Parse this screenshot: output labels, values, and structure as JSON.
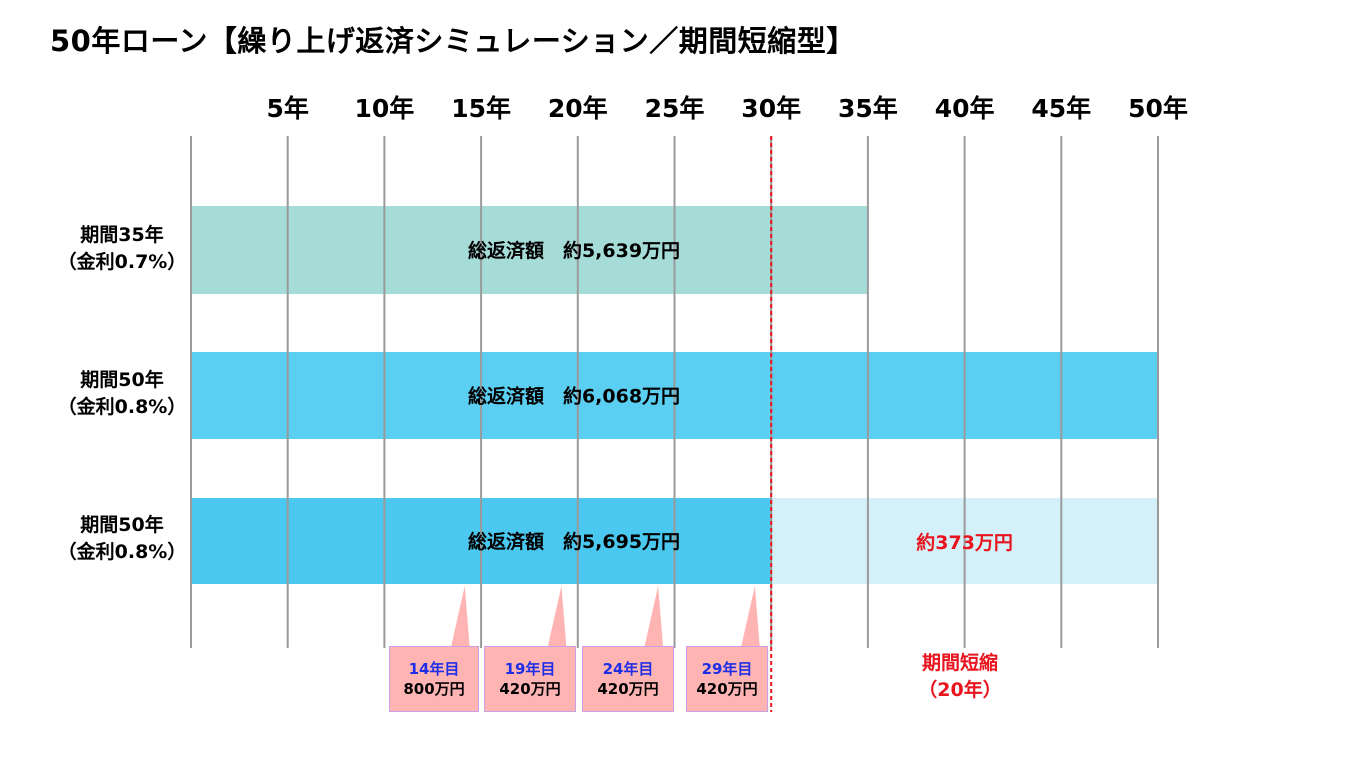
{
  "title": "50年ローン【繰り上げ返済シミュレーション／期間短縮型】",
  "colors": {
    "bar_35": "#a6dcd8",
    "bar_50": "#5bcff1",
    "bar_prepay": "#4bc8ef",
    "bar_saving": "#d4f1fa",
    "grid": "#9a9a9a",
    "marker": "#e8141e",
    "callout_bg": "#ffb4b4",
    "callout_year": "#1e2ee6"
  },
  "chart_data": {
    "type": "bar",
    "orientation": "horizontal",
    "title": "50年ローン【繰り上げ返済シミュレーション／期間短縮型】",
    "x_unit": "年",
    "xlim": [
      0,
      50
    ],
    "xticks": [
      5,
      10,
      15,
      20,
      25,
      30,
      35,
      40,
      45,
      50
    ],
    "xtick_labels": [
      "5年",
      "10年",
      "15年",
      "20年",
      "25年",
      "30年",
      "35年",
      "40年",
      "45年",
      "50年"
    ],
    "grid": true,
    "series": [
      {
        "name": "期間35年",
        "rate": "（金利0.7%）",
        "term_years": 35,
        "label": "総返済額　約5,639万円",
        "color_key": "bar_35"
      },
      {
        "name": "期間50年",
        "rate": "（金利0.8%）",
        "term_years": 50,
        "label": "総返済額　約6,068万円",
        "color_key": "bar_50"
      },
      {
        "name": "期間50年",
        "rate": "（金利0.8%）",
        "term_years": 30,
        "label": "総返済額　約5,695万円",
        "color_key": "bar_prepay",
        "saving": {
          "from_year": 30,
          "to_year": 50,
          "label": "約373万円"
        }
      }
    ],
    "marker_year": 30,
    "prepayments": [
      {
        "year": 14,
        "year_label": "14年目",
        "amount_label": "800万円"
      },
      {
        "year": 19,
        "year_label": "19年目",
        "amount_label": "420万円"
      },
      {
        "year": 24,
        "year_label": "24年目",
        "amount_label": "420万円"
      },
      {
        "year": 29,
        "year_label": "29年目",
        "amount_label": "420万円"
      }
    ],
    "shortening": {
      "line1": "期間短縮",
      "line2": "（20年）"
    }
  }
}
